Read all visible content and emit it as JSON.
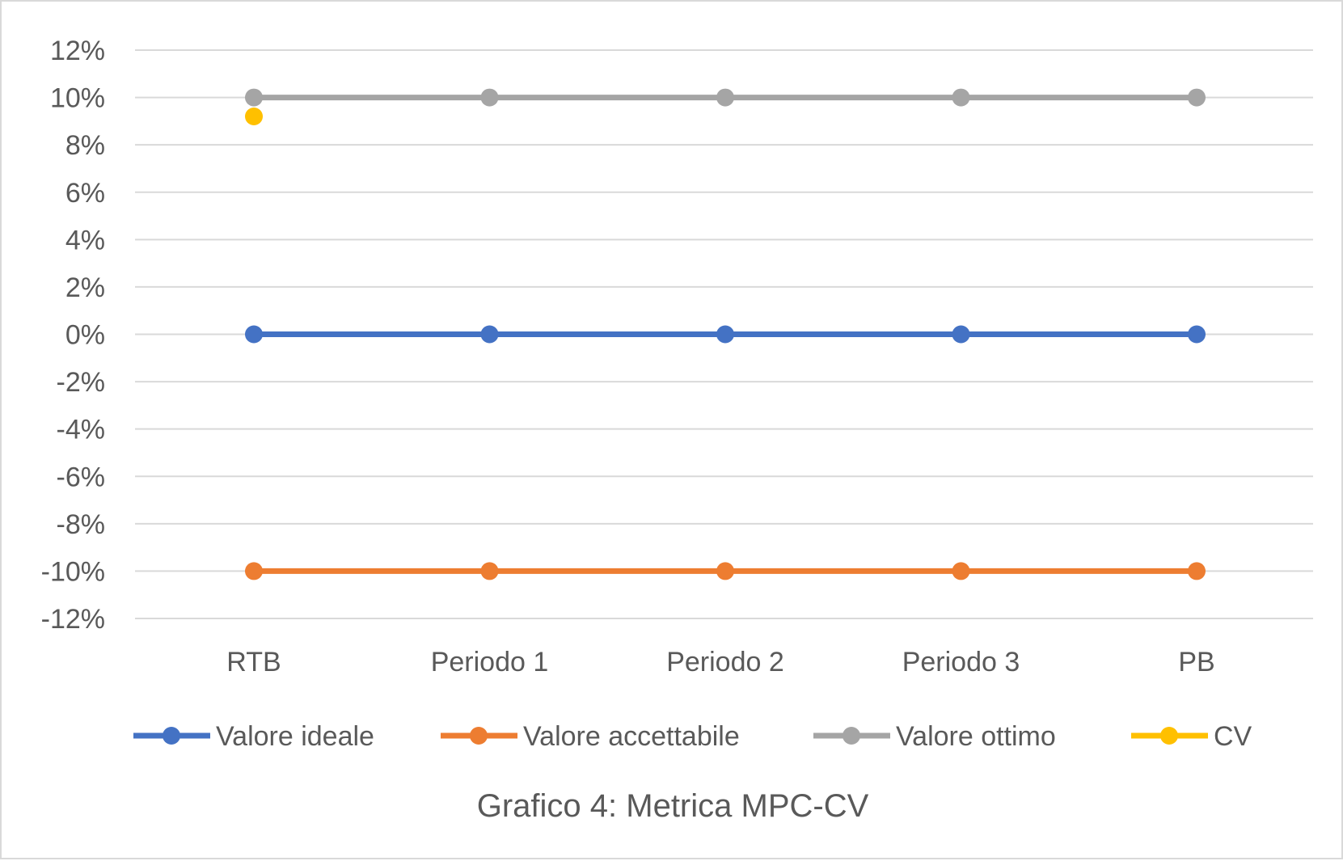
{
  "chart_data": {
    "type": "line",
    "categories": [
      "RTB",
      "Periodo 1",
      "Periodo 2",
      "Periodo 3",
      "PB"
    ],
    "series": [
      {
        "name": "Valore ideale",
        "values": [
          0,
          0,
          0,
          0,
          0
        ],
        "color": "#4472c4"
      },
      {
        "name": "Valore accettabile",
        "values": [
          -10,
          -10,
          -10,
          -10,
          -10
        ],
        "color": "#ed7d31"
      },
      {
        "name": "Valore ottimo",
        "values": [
          10,
          10,
          10,
          10,
          10
        ],
        "color": "#a5a5a5"
      },
      {
        "name": "CV",
        "values": [
          9.2,
          null,
          null,
          null,
          null
        ],
        "color": "#ffc000"
      }
    ],
    "ylim": [
      -12,
      12
    ],
    "yticks": [
      12,
      10,
      8,
      6,
      4,
      2,
      0,
      -2,
      -4,
      -6,
      -8,
      -10,
      -12
    ],
    "ytick_labels": [
      "12%",
      "10%",
      "8%",
      "6%",
      "4%",
      "2%",
      "0%",
      "-2%",
      "-4%",
      "-6%",
      "-8%",
      "-10%",
      "-12%"
    ],
    "grid": true,
    "legend_position": "bottom",
    "caption": "Grafico 4: Metrica MPC-CV"
  }
}
